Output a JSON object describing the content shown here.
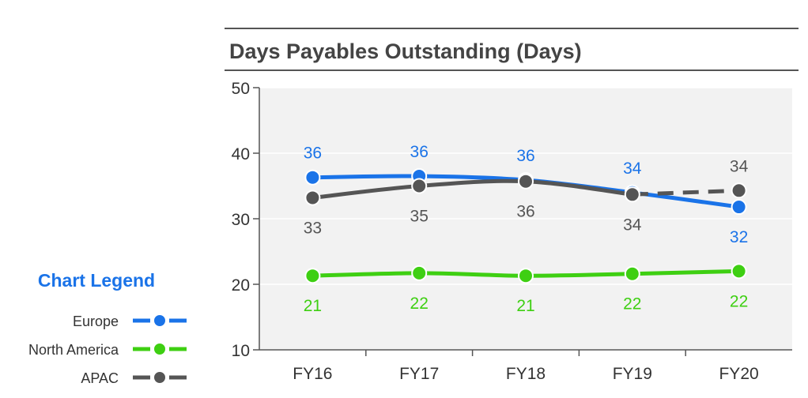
{
  "chart_data": {
    "type": "line",
    "title": "Days Payables Outstanding (Days)",
    "categories": [
      "FY16",
      "FY17",
      "FY18",
      "FY19",
      "FY20"
    ],
    "ylim": [
      10,
      50
    ],
    "yticks": [
      10,
      20,
      30,
      40,
      50
    ],
    "grid": true,
    "series": [
      {
        "name": "Europe",
        "color": "#1a73e8",
        "values": [
          36.3,
          36.5,
          35.9,
          34.0,
          31.8
        ],
        "labels": [
          "36",
          "36",
          "36",
          "34",
          "32"
        ],
        "label_position": [
          "above",
          "above",
          "above",
          "above",
          "below"
        ]
      },
      {
        "name": "North America",
        "color": "#3ecf12",
        "values": [
          21.3,
          21.7,
          21.3,
          21.6,
          22.0
        ],
        "labels": [
          "21",
          "22",
          "21",
          "22",
          "22"
        ],
        "label_position": [
          "below",
          "below",
          "below",
          "below",
          "below"
        ]
      },
      {
        "name": "APAC",
        "color": "#555555",
        "values": [
          33.2,
          35.0,
          35.7,
          33.7,
          34.3
        ],
        "labels": [
          "33",
          "35",
          "36",
          "34",
          "34"
        ],
        "label_position": [
          "below",
          "below",
          "below",
          "below",
          "above"
        ],
        "dashed_last_segment": true
      }
    ],
    "legend": {
      "title": "Chart Legend",
      "placement": "left",
      "title_color": "#1a73e8"
    }
  }
}
